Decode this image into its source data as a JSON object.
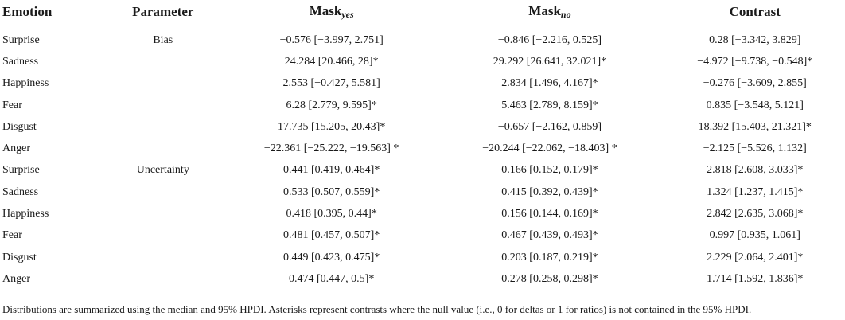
{
  "header": {
    "emotion": "Emotion",
    "parameter": "Parameter",
    "mask_yes_base": "Mask",
    "mask_yes_sub": "yes",
    "mask_no_base": "Mask",
    "mask_no_sub": "no",
    "contrast": "Contrast"
  },
  "rows": [
    {
      "emotion": "Surprise",
      "parameter": "Bias",
      "mask_yes": "−0.576 [−3.997, 2.751]",
      "mask_no": "−0.846 [−2.216, 0.525]",
      "contrast": "0.28 [−3.342, 3.829]"
    },
    {
      "emotion": "Sadness",
      "parameter": "",
      "mask_yes": "24.284 [20.466, 28]*",
      "mask_no": "29.292 [26.641, 32.021]*",
      "contrast": "−4.972 [−9.738, −0.548]*"
    },
    {
      "emotion": "Happiness",
      "parameter": "",
      "mask_yes": "2.553 [−0.427, 5.581]",
      "mask_no": "2.834 [1.496, 4.167]*",
      "contrast": "−0.276 [−3.609, 2.855]"
    },
    {
      "emotion": "Fear",
      "parameter": "",
      "mask_yes": "6.28 [2.779, 9.595]*",
      "mask_no": "5.463 [2.789, 8.159]*",
      "contrast": "0.835 [−3.548, 5.121]"
    },
    {
      "emotion": "Disgust",
      "parameter": "",
      "mask_yes": "17.735 [15.205, 20.43]*",
      "mask_no": "−0.657 [−2.162, 0.859]",
      "contrast": "18.392 [15.403, 21.321]*"
    },
    {
      "emotion": "Anger",
      "parameter": "",
      "mask_yes": "−22.361 [−25.222, −19.563] *",
      "mask_no": "−20.244 [−22.062, −18.403] *",
      "contrast": "−2.125 [−5.526, 1.132]"
    },
    {
      "emotion": "Surprise",
      "parameter": "Uncertainty",
      "mask_yes": "0.441 [0.419, 0.464]*",
      "mask_no": "0.166 [0.152, 0.179]*",
      "contrast": "2.818 [2.608, 3.033]*"
    },
    {
      "emotion": "Sadness",
      "parameter": "",
      "mask_yes": "0.533 [0.507, 0.559]*",
      "mask_no": "0.415 [0.392, 0.439]*",
      "contrast": "1.324 [1.237, 1.415]*"
    },
    {
      "emotion": "Happiness",
      "parameter": "",
      "mask_yes": "0.418 [0.395, 0.44]*",
      "mask_no": "0.156 [0.144, 0.169]*",
      "contrast": "2.842 [2.635, 3.068]*"
    },
    {
      "emotion": "Fear",
      "parameter": "",
      "mask_yes": "0.481 [0.457, 0.507]*",
      "mask_no": "0.467 [0.439, 0.493]*",
      "contrast": "0.997 [0.935, 1.061]"
    },
    {
      "emotion": "Disgust",
      "parameter": "",
      "mask_yes": "0.449 [0.423, 0.475]*",
      "mask_no": "0.203 [0.187, 0.219]*",
      "contrast": "2.229 [2.064, 2.401]*"
    },
    {
      "emotion": "Anger",
      "parameter": "",
      "mask_yes": "0.474 [0.447, 0.5]*",
      "mask_no": "0.278 [0.258, 0.298]*",
      "contrast": "1.714 [1.592, 1.836]*"
    }
  ],
  "footnote": "Distributions are summarized using the median and 95% HPDI. Asterisks represent contrasts where the null value (i.e., 0 for deltas or 1 for ratios) is not contained in the 95% HPDI."
}
